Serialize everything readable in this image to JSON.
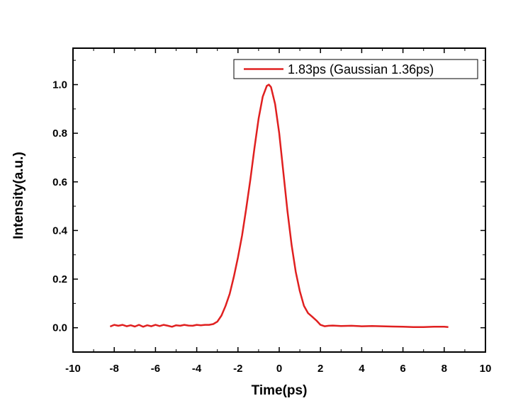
{
  "chart_data": {
    "type": "line",
    "xlabel": "Time(ps)",
    "ylabel": "Intensity(a.u.)",
    "xlim": [
      -10,
      10
    ],
    "ylim": [
      -0.1,
      1.15
    ],
    "x_ticks": [
      -10,
      -8,
      -6,
      -4,
      -2,
      0,
      2,
      4,
      6,
      8,
      10
    ],
    "y_ticks": [
      0.0,
      0.2,
      0.4,
      0.6,
      0.8,
      1.0
    ],
    "x_tick_labels": [
      "-10",
      "-8",
      "-6",
      "-4",
      "-2",
      "0",
      "2",
      "4",
      "6",
      "8",
      "10"
    ],
    "y_tick_labels": [
      "0.0",
      "0.2",
      "0.4",
      "0.6",
      "0.8",
      "1.0"
    ],
    "grid": false,
    "legend_position": "top-right",
    "series": [
      {
        "name": "1.83ps (Gaussian 1.36ps)",
        "color": "#e02020",
        "x": [
          -8.2,
          -8.0,
          -7.8,
          -7.6,
          -7.4,
          -7.2,
          -7.0,
          -6.8,
          -6.6,
          -6.4,
          -6.2,
          -6.0,
          -5.8,
          -5.6,
          -5.4,
          -5.2,
          -5.0,
          -4.8,
          -4.6,
          -4.4,
          -4.2,
          -4.0,
          -3.8,
          -3.6,
          -3.4,
          -3.2,
          -3.0,
          -2.8,
          -2.6,
          -2.4,
          -2.2,
          -2.0,
          -1.8,
          -1.6,
          -1.4,
          -1.2,
          -1.0,
          -0.8,
          -0.6,
          -0.5,
          -0.4,
          -0.2,
          0.0,
          0.2,
          0.4,
          0.6,
          0.8,
          1.0,
          1.2,
          1.4,
          1.6,
          1.8,
          2.0,
          2.2,
          2.4,
          2.6,
          3.0,
          3.5,
          4.0,
          4.5,
          5.0,
          5.5,
          6.0,
          6.5,
          7.0,
          7.5,
          8.0,
          8.2
        ],
        "values": [
          0.005,
          0.012,
          0.008,
          0.012,
          0.006,
          0.01,
          0.005,
          0.012,
          0.004,
          0.01,
          0.006,
          0.012,
          0.007,
          0.012,
          0.008,
          0.004,
          0.01,
          0.008,
          0.012,
          0.009,
          0.008,
          0.012,
          0.01,
          0.012,
          0.012,
          0.015,
          0.025,
          0.05,
          0.09,
          0.14,
          0.21,
          0.29,
          0.38,
          0.49,
          0.61,
          0.74,
          0.86,
          0.95,
          0.995,
          1.0,
          0.99,
          0.92,
          0.8,
          0.64,
          0.48,
          0.34,
          0.23,
          0.15,
          0.09,
          0.06,
          0.045,
          0.03,
          0.012,
          0.006,
          0.008,
          0.009,
          0.007,
          0.008,
          0.006,
          0.007,
          0.006,
          0.005,
          0.004,
          0.003,
          0.003,
          0.004,
          0.004,
          0.003
        ]
      }
    ]
  }
}
